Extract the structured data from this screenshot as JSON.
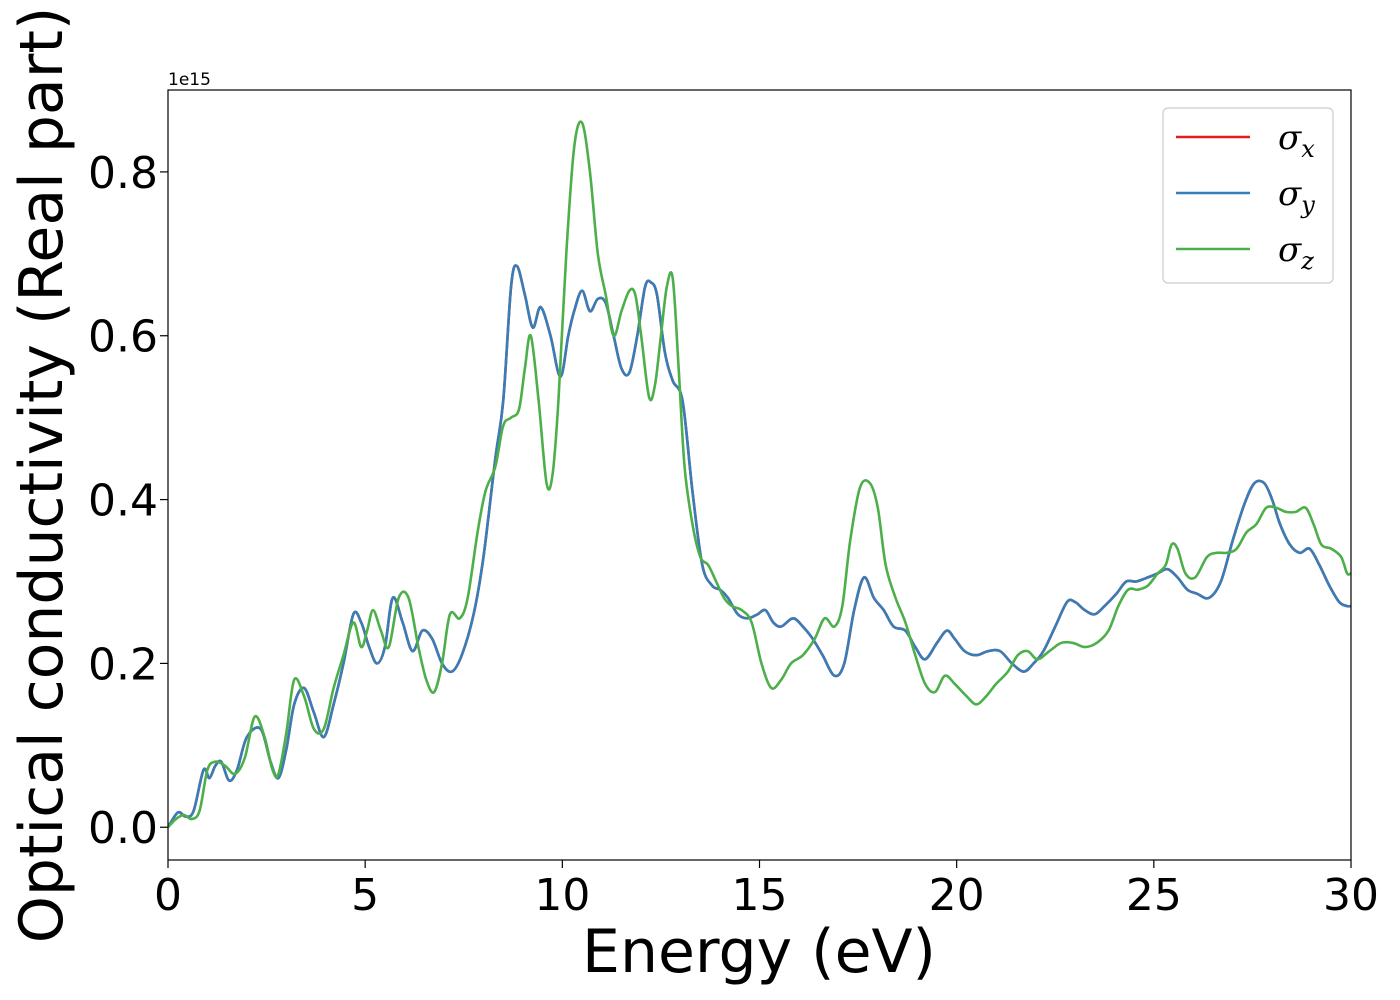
{
  "chart_data": {
    "type": "line",
    "xlabel": "Energy (eV)",
    "ylabel": "Optical conductivity (Real part)",
    "y_offset_text": "1e15",
    "xlim": [
      0,
      30
    ],
    "ylim": [
      -0.04,
      0.9
    ],
    "x_ticks": [
      0,
      5,
      10,
      15,
      20,
      25,
      30
    ],
    "x_tick_labels": [
      "0",
      "5",
      "10",
      "15",
      "20",
      "25",
      "30"
    ],
    "y_ticks": [
      0.0,
      0.2,
      0.4,
      0.6,
      0.8
    ],
    "y_tick_labels": [
      "0.0",
      "0.2",
      "0.4",
      "0.6",
      "0.8"
    ],
    "grid": false,
    "legend_position": "top-right",
    "series": [
      {
        "name": "σx",
        "legend_symbol": "σ",
        "legend_subscript": "x",
        "color": "#e41a1c",
        "x": [
          0,
          0.25,
          0.45,
          0.65,
          0.9,
          1.05,
          1.2,
          1.35,
          1.55,
          1.75,
          2.0,
          2.35,
          2.6,
          2.8,
          3.0,
          3.2,
          3.45,
          3.7,
          3.95,
          4.2,
          4.45,
          4.7,
          4.9,
          5.1,
          5.3,
          5.5,
          5.7,
          5.95,
          6.2,
          6.45,
          6.7,
          6.95,
          7.2,
          7.45,
          7.75,
          8.0,
          8.3,
          8.5,
          8.7,
          8.85,
          9.05,
          9.25,
          9.45,
          9.7,
          9.95,
          10.15,
          10.3,
          10.5,
          10.7,
          10.9,
          11.1,
          11.3,
          11.5,
          11.7,
          11.9,
          12.1,
          12.25,
          12.4,
          12.6,
          12.8,
          13.05,
          13.3,
          13.55,
          13.8,
          14.0,
          14.2,
          14.45,
          14.7,
          14.95,
          15.15,
          15.35,
          15.55,
          15.85,
          16.1,
          16.35,
          16.6,
          16.9,
          17.15,
          17.4,
          17.65,
          17.9,
          18.15,
          18.4,
          18.7,
          18.95,
          19.2,
          19.5,
          19.75,
          19.95,
          20.2,
          20.5,
          20.8,
          21.1,
          21.4,
          21.7,
          21.95,
          22.2,
          22.5,
          22.8,
          23.0,
          23.25,
          23.5,
          23.75,
          24.05,
          24.3,
          24.55,
          24.85,
          25.1,
          25.35,
          25.6,
          25.85,
          26.1,
          26.4,
          26.7,
          27.0,
          27.3,
          27.55,
          27.8,
          28.0,
          28.2,
          28.45,
          28.7,
          28.95,
          29.2,
          29.45,
          29.7,
          29.9,
          30.0
        ],
        "y": [
          0.0,
          0.018,
          0.013,
          0.02,
          0.07,
          0.06,
          0.075,
          0.08,
          0.057,
          0.07,
          0.11,
          0.12,
          0.08,
          0.06,
          0.095,
          0.15,
          0.17,
          0.14,
          0.11,
          0.15,
          0.2,
          0.26,
          0.25,
          0.22,
          0.2,
          0.22,
          0.28,
          0.25,
          0.215,
          0.24,
          0.23,
          0.2,
          0.19,
          0.21,
          0.26,
          0.33,
          0.45,
          0.52,
          0.66,
          0.685,
          0.65,
          0.61,
          0.635,
          0.6,
          0.55,
          0.6,
          0.63,
          0.655,
          0.63,
          0.645,
          0.64,
          0.6,
          0.56,
          0.555,
          0.6,
          0.66,
          0.665,
          0.65,
          0.58,
          0.545,
          0.52,
          0.41,
          0.32,
          0.295,
          0.29,
          0.28,
          0.26,
          0.255,
          0.26,
          0.265,
          0.25,
          0.245,
          0.255,
          0.245,
          0.23,
          0.21,
          0.185,
          0.2,
          0.265,
          0.305,
          0.28,
          0.265,
          0.245,
          0.24,
          0.22,
          0.205,
          0.225,
          0.24,
          0.23,
          0.215,
          0.21,
          0.215,
          0.215,
          0.2,
          0.19,
          0.2,
          0.215,
          0.245,
          0.275,
          0.275,
          0.265,
          0.26,
          0.27,
          0.285,
          0.3,
          0.3,
          0.305,
          0.31,
          0.315,
          0.305,
          0.29,
          0.285,
          0.28,
          0.3,
          0.35,
          0.395,
          0.42,
          0.42,
          0.4,
          0.37,
          0.345,
          0.335,
          0.34,
          0.32,
          0.295,
          0.275,
          0.27,
          0.27
        ]
      },
      {
        "name": "σy",
        "legend_symbol": "σ",
        "legend_subscript": "y",
        "color": "#377eb8",
        "x": [
          0,
          0.25,
          0.45,
          0.65,
          0.9,
          1.05,
          1.2,
          1.35,
          1.55,
          1.75,
          2.0,
          2.35,
          2.6,
          2.8,
          3.0,
          3.2,
          3.45,
          3.7,
          3.95,
          4.2,
          4.45,
          4.7,
          4.9,
          5.1,
          5.3,
          5.5,
          5.7,
          5.95,
          6.2,
          6.45,
          6.7,
          6.95,
          7.2,
          7.45,
          7.75,
          8.0,
          8.3,
          8.5,
          8.7,
          8.85,
          9.05,
          9.25,
          9.45,
          9.7,
          9.95,
          10.15,
          10.3,
          10.5,
          10.7,
          10.9,
          11.1,
          11.3,
          11.5,
          11.7,
          11.9,
          12.1,
          12.25,
          12.4,
          12.6,
          12.8,
          13.05,
          13.3,
          13.55,
          13.8,
          14.0,
          14.2,
          14.45,
          14.7,
          14.95,
          15.15,
          15.35,
          15.55,
          15.85,
          16.1,
          16.35,
          16.6,
          16.9,
          17.15,
          17.4,
          17.65,
          17.9,
          18.15,
          18.4,
          18.7,
          18.95,
          19.2,
          19.5,
          19.75,
          19.95,
          20.2,
          20.5,
          20.8,
          21.1,
          21.4,
          21.7,
          21.95,
          22.2,
          22.5,
          22.8,
          23.0,
          23.25,
          23.5,
          23.75,
          24.05,
          24.3,
          24.55,
          24.85,
          25.1,
          25.35,
          25.6,
          25.85,
          26.1,
          26.4,
          26.7,
          27.0,
          27.3,
          27.55,
          27.8,
          28.0,
          28.2,
          28.45,
          28.7,
          28.95,
          29.2,
          29.45,
          29.7,
          29.9,
          30.0
        ],
        "y": [
          0.0,
          0.018,
          0.013,
          0.02,
          0.07,
          0.06,
          0.075,
          0.08,
          0.057,
          0.07,
          0.11,
          0.12,
          0.08,
          0.06,
          0.095,
          0.15,
          0.17,
          0.14,
          0.11,
          0.15,
          0.2,
          0.26,
          0.25,
          0.22,
          0.2,
          0.22,
          0.28,
          0.25,
          0.215,
          0.24,
          0.23,
          0.2,
          0.19,
          0.21,
          0.26,
          0.33,
          0.45,
          0.52,
          0.66,
          0.685,
          0.65,
          0.61,
          0.635,
          0.6,
          0.55,
          0.6,
          0.63,
          0.655,
          0.63,
          0.645,
          0.64,
          0.6,
          0.56,
          0.555,
          0.6,
          0.66,
          0.665,
          0.65,
          0.58,
          0.545,
          0.52,
          0.41,
          0.32,
          0.295,
          0.29,
          0.28,
          0.26,
          0.255,
          0.26,
          0.265,
          0.25,
          0.245,
          0.255,
          0.245,
          0.23,
          0.21,
          0.185,
          0.2,
          0.265,
          0.305,
          0.28,
          0.265,
          0.245,
          0.24,
          0.22,
          0.205,
          0.225,
          0.24,
          0.23,
          0.215,
          0.21,
          0.215,
          0.215,
          0.2,
          0.19,
          0.2,
          0.215,
          0.245,
          0.275,
          0.275,
          0.265,
          0.26,
          0.27,
          0.285,
          0.3,
          0.3,
          0.305,
          0.31,
          0.315,
          0.305,
          0.29,
          0.285,
          0.28,
          0.3,
          0.35,
          0.395,
          0.42,
          0.42,
          0.4,
          0.37,
          0.345,
          0.335,
          0.34,
          0.32,
          0.295,
          0.275,
          0.27,
          0.27
        ]
      },
      {
        "name": "σz",
        "legend_symbol": "σ",
        "legend_subscript": "z",
        "color": "#4daf4a",
        "x": [
          0,
          0.2,
          0.4,
          0.6,
          0.8,
          1.0,
          1.2,
          1.45,
          1.7,
          1.95,
          2.2,
          2.45,
          2.65,
          2.8,
          3.0,
          3.2,
          3.45,
          3.7,
          3.95,
          4.2,
          4.45,
          4.7,
          4.9,
          5.05,
          5.2,
          5.4,
          5.6,
          5.85,
          6.1,
          6.35,
          6.55,
          6.75,
          6.95,
          7.15,
          7.4,
          7.6,
          7.85,
          8.05,
          8.3,
          8.5,
          8.7,
          8.9,
          9.05,
          9.2,
          9.4,
          9.6,
          9.75,
          9.9,
          10.1,
          10.3,
          10.5,
          10.7,
          10.9,
          11.1,
          11.3,
          11.5,
          11.7,
          11.85,
          12.0,
          12.2,
          12.35,
          12.5,
          12.65,
          12.8,
          12.95,
          13.1,
          13.3,
          13.5,
          13.7,
          13.9,
          14.1,
          14.3,
          14.55,
          14.8,
          15.05,
          15.3,
          15.55,
          15.8,
          16.1,
          16.4,
          16.65,
          16.9,
          17.1,
          17.3,
          17.55,
          17.8,
          18.0,
          18.2,
          18.45,
          18.7,
          18.95,
          19.2,
          19.45,
          19.7,
          19.95,
          20.25,
          20.5,
          20.75,
          21.0,
          21.3,
          21.55,
          21.8,
          22.05,
          22.35,
          22.65,
          22.95,
          23.25,
          23.55,
          23.85,
          24.1,
          24.35,
          24.6,
          24.85,
          25.1,
          25.3,
          25.45,
          25.6,
          25.8,
          26.05,
          26.35,
          26.6,
          26.85,
          27.1,
          27.35,
          27.6,
          27.85,
          28.1,
          28.35,
          28.6,
          28.85,
          29.05,
          29.25,
          29.5,
          29.75,
          29.9,
          30.0
        ],
        "y": [
          0.0,
          0.01,
          0.015,
          0.01,
          0.02,
          0.07,
          0.08,
          0.075,
          0.065,
          0.085,
          0.135,
          0.11,
          0.07,
          0.065,
          0.115,
          0.18,
          0.16,
          0.12,
          0.12,
          0.17,
          0.21,
          0.25,
          0.22,
          0.24,
          0.265,
          0.24,
          0.22,
          0.28,
          0.28,
          0.22,
          0.18,
          0.165,
          0.2,
          0.26,
          0.255,
          0.28,
          0.36,
          0.41,
          0.44,
          0.49,
          0.5,
          0.51,
          0.56,
          0.6,
          0.52,
          0.42,
          0.43,
          0.52,
          0.7,
          0.83,
          0.86,
          0.8,
          0.7,
          0.65,
          0.6,
          0.63,
          0.655,
          0.65,
          0.6,
          0.525,
          0.54,
          0.6,
          0.66,
          0.67,
          0.56,
          0.44,
          0.37,
          0.33,
          0.32,
          0.3,
          0.28,
          0.27,
          0.265,
          0.25,
          0.2,
          0.17,
          0.18,
          0.2,
          0.21,
          0.23,
          0.255,
          0.245,
          0.27,
          0.35,
          0.415,
          0.42,
          0.39,
          0.32,
          0.28,
          0.25,
          0.21,
          0.175,
          0.165,
          0.185,
          0.175,
          0.16,
          0.15,
          0.16,
          0.175,
          0.19,
          0.21,
          0.215,
          0.205,
          0.215,
          0.225,
          0.225,
          0.22,
          0.225,
          0.24,
          0.27,
          0.29,
          0.29,
          0.295,
          0.31,
          0.32,
          0.345,
          0.34,
          0.31,
          0.305,
          0.33,
          0.335,
          0.335,
          0.34,
          0.36,
          0.37,
          0.39,
          0.39,
          0.385,
          0.385,
          0.39,
          0.37,
          0.345,
          0.34,
          0.33,
          0.31,
          0.31
        ]
      }
    ]
  }
}
